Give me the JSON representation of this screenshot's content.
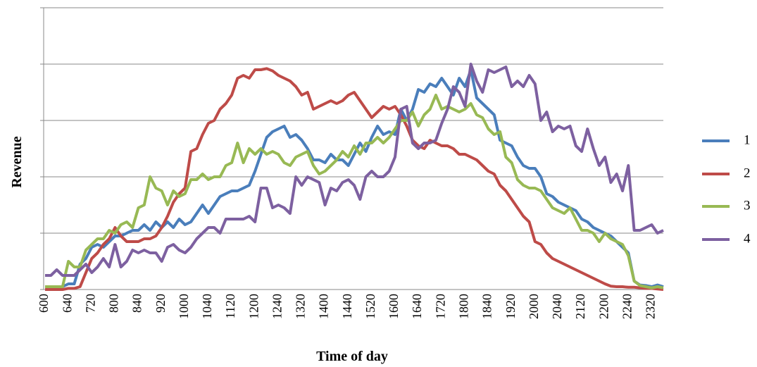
{
  "chart_data": {
    "type": "line",
    "x_label": "Time of day",
    "y_label": "Revenue",
    "categories": [
      "600",
      null,
      null,
      null,
      "640",
      null,
      null,
      null,
      "720",
      null,
      null,
      null,
      "800",
      null,
      null,
      null,
      "840",
      null,
      null,
      null,
      "920",
      null,
      null,
      null,
      "1000",
      null,
      null,
      null,
      "1040",
      null,
      null,
      null,
      "1120",
      null,
      null,
      null,
      "1200",
      null,
      null,
      null,
      "1240",
      null,
      null,
      null,
      "1320",
      null,
      null,
      null,
      "1400",
      null,
      null,
      null,
      "1440",
      null,
      null,
      null,
      "1520",
      null,
      null,
      null,
      "1600",
      null,
      null,
      null,
      "1640",
      null,
      null,
      null,
      "1720",
      null,
      null,
      null,
      "1800",
      null,
      null,
      null,
      "1840",
      null,
      null,
      null,
      "1920",
      null,
      null,
      null,
      "2000",
      null,
      null,
      null,
      "2040",
      null,
      null,
      null,
      "2120",
      null,
      null,
      null,
      "2200",
      null,
      null,
      null,
      "2240",
      null,
      null,
      null,
      "2320",
      null,
      null
    ],
    "series": [
      {
        "name": "1",
        "color": "#4a7ebb",
        "values": [
          0.05,
          0.05,
          0.05,
          0.05,
          0.1,
          0.1,
          0.45,
          0.55,
          0.75,
          0.8,
          0.75,
          0.85,
          0.95,
          0.95,
          1.0,
          1.05,
          1.05,
          1.15,
          1.05,
          1.2,
          1.1,
          1.2,
          1.1,
          1.25,
          1.15,
          1.2,
          1.35,
          1.5,
          1.35,
          1.5,
          1.65,
          1.7,
          1.75,
          1.75,
          1.8,
          1.85,
          2.1,
          2.4,
          2.7,
          2.8,
          2.85,
          2.9,
          2.7,
          2.75,
          2.65,
          2.5,
          2.3,
          2.3,
          2.25,
          2.4,
          2.3,
          2.3,
          2.2,
          2.4,
          2.6,
          2.45,
          2.7,
          2.9,
          2.75,
          2.8,
          2.75,
          3.2,
          3.0,
          3.2,
          3.55,
          3.5,
          3.65,
          3.6,
          3.75,
          3.6,
          3.45,
          3.75,
          3.6,
          3.9,
          3.4,
          3.3,
          3.2,
          3.1,
          2.65,
          2.6,
          2.55,
          2.35,
          2.2,
          2.15,
          2.15,
          2.0,
          1.7,
          1.65,
          1.55,
          1.5,
          1.45,
          1.4,
          1.25,
          1.2,
          1.1,
          1.05,
          1.0,
          0.95,
          0.85,
          0.75,
          0.65,
          0.15,
          0.08,
          0.07,
          0.05,
          0.08,
          0.05
        ]
      },
      {
        "name": "2",
        "color": "#be4b48",
        "values": [
          0,
          0,
          0,
          0,
          0.02,
          0.02,
          0.05,
          0.3,
          0.55,
          0.65,
          0.8,
          0.9,
          1.1,
          0.95,
          0.85,
          0.85,
          0.85,
          0.9,
          0.9,
          0.95,
          1.1,
          1.3,
          1.55,
          1.7,
          1.8,
          2.45,
          2.5,
          2.75,
          2.95,
          3.0,
          3.2,
          3.3,
          3.45,
          3.75,
          3.8,
          3.75,
          3.9,
          3.9,
          3.92,
          3.88,
          3.8,
          3.75,
          3.7,
          3.6,
          3.45,
          3.5,
          3.2,
          3.25,
          3.3,
          3.35,
          3.3,
          3.35,
          3.45,
          3.5,
          3.35,
          3.2,
          3.05,
          3.15,
          3.25,
          3.2,
          3.25,
          3.1,
          2.9,
          2.65,
          2.55,
          2.5,
          2.65,
          2.6,
          2.55,
          2.55,
          2.5,
          2.4,
          2.4,
          2.35,
          2.3,
          2.2,
          2.1,
          2.05,
          1.85,
          1.75,
          1.6,
          1.45,
          1.3,
          1.2,
          0.85,
          0.8,
          0.65,
          0.55,
          0.5,
          0.45,
          0.4,
          0.35,
          0.3,
          0.25,
          0.2,
          0.15,
          0.1,
          0.06,
          0.05,
          0.05,
          0.04,
          0.04,
          0.03,
          0.02,
          0.02,
          0.01,
          0
        ]
      },
      {
        "name": "3",
        "color": "#98b954",
        "values": [
          0.05,
          0.05,
          0.05,
          0.05,
          0.5,
          0.4,
          0.4,
          0.7,
          0.8,
          0.9,
          0.9,
          1.05,
          1.0,
          1.15,
          1.2,
          1.1,
          1.45,
          1.5,
          2.0,
          1.8,
          1.75,
          1.5,
          1.75,
          1.65,
          1.7,
          1.95,
          1.95,
          2.05,
          1.95,
          2.0,
          2.0,
          2.2,
          2.25,
          2.6,
          2.25,
          2.5,
          2.4,
          2.5,
          2.4,
          2.45,
          2.4,
          2.25,
          2.2,
          2.35,
          2.4,
          2.45,
          2.2,
          2.05,
          2.1,
          2.2,
          2.3,
          2.45,
          2.35,
          2.55,
          2.4,
          2.6,
          2.6,
          2.7,
          2.6,
          2.7,
          2.85,
          3.0,
          3.0,
          3.15,
          2.9,
          3.1,
          3.2,
          3.45,
          3.2,
          3.25,
          3.2,
          3.15,
          3.2,
          3.3,
          3.1,
          3.05,
          2.85,
          2.75,
          2.8,
          2.35,
          2.25,
          1.95,
          1.85,
          1.8,
          1.8,
          1.75,
          1.6,
          1.45,
          1.4,
          1.35,
          1.45,
          1.25,
          1.05,
          1.05,
          1.0,
          0.85,
          1.0,
          0.9,
          0.85,
          0.8,
          0.6,
          0.15,
          0.07,
          0.05,
          0.03,
          0.05,
          0.03
        ]
      },
      {
        "name": "4",
        "color": "#7d60a0",
        "values": [
          0.25,
          0.25,
          0.35,
          0.25,
          0.25,
          0.25,
          0.35,
          0.45,
          0.3,
          0.4,
          0.55,
          0.4,
          0.8,
          0.4,
          0.5,
          0.7,
          0.65,
          0.7,
          0.65,
          0.65,
          0.5,
          0.75,
          0.8,
          0.7,
          0.65,
          0.75,
          0.9,
          1.0,
          1.1,
          1.1,
          1.0,
          1.25,
          1.25,
          1.25,
          1.25,
          1.3,
          1.2,
          1.8,
          1.8,
          1.45,
          1.5,
          1.45,
          1.35,
          2.0,
          1.85,
          2.0,
          1.95,
          1.9,
          1.5,
          1.8,
          1.75,
          1.9,
          1.95,
          1.85,
          1.6,
          2.0,
          2.1,
          2.0,
          2.0,
          2.1,
          2.35,
          3.2,
          3.25,
          2.6,
          2.5,
          2.6,
          2.6,
          2.65,
          2.95,
          3.2,
          3.6,
          3.5,
          3.25,
          4.0,
          3.7,
          3.5,
          3.9,
          3.85,
          3.9,
          3.95,
          3.6,
          3.7,
          3.6,
          3.8,
          3.65,
          3.0,
          3.15,
          2.8,
          2.9,
          2.85,
          2.9,
          2.55,
          2.45,
          2.85,
          2.5,
          2.2,
          2.35,
          1.9,
          2.05,
          1.75,
          2.2,
          1.05,
          1.05,
          1.1,
          1.15,
          1.0,
          1.05
        ]
      }
    ],
    "ylim": [
      0,
      5
    ],
    "grid_lines": [
      1,
      2,
      3,
      4,
      5
    ],
    "legend": "right"
  }
}
